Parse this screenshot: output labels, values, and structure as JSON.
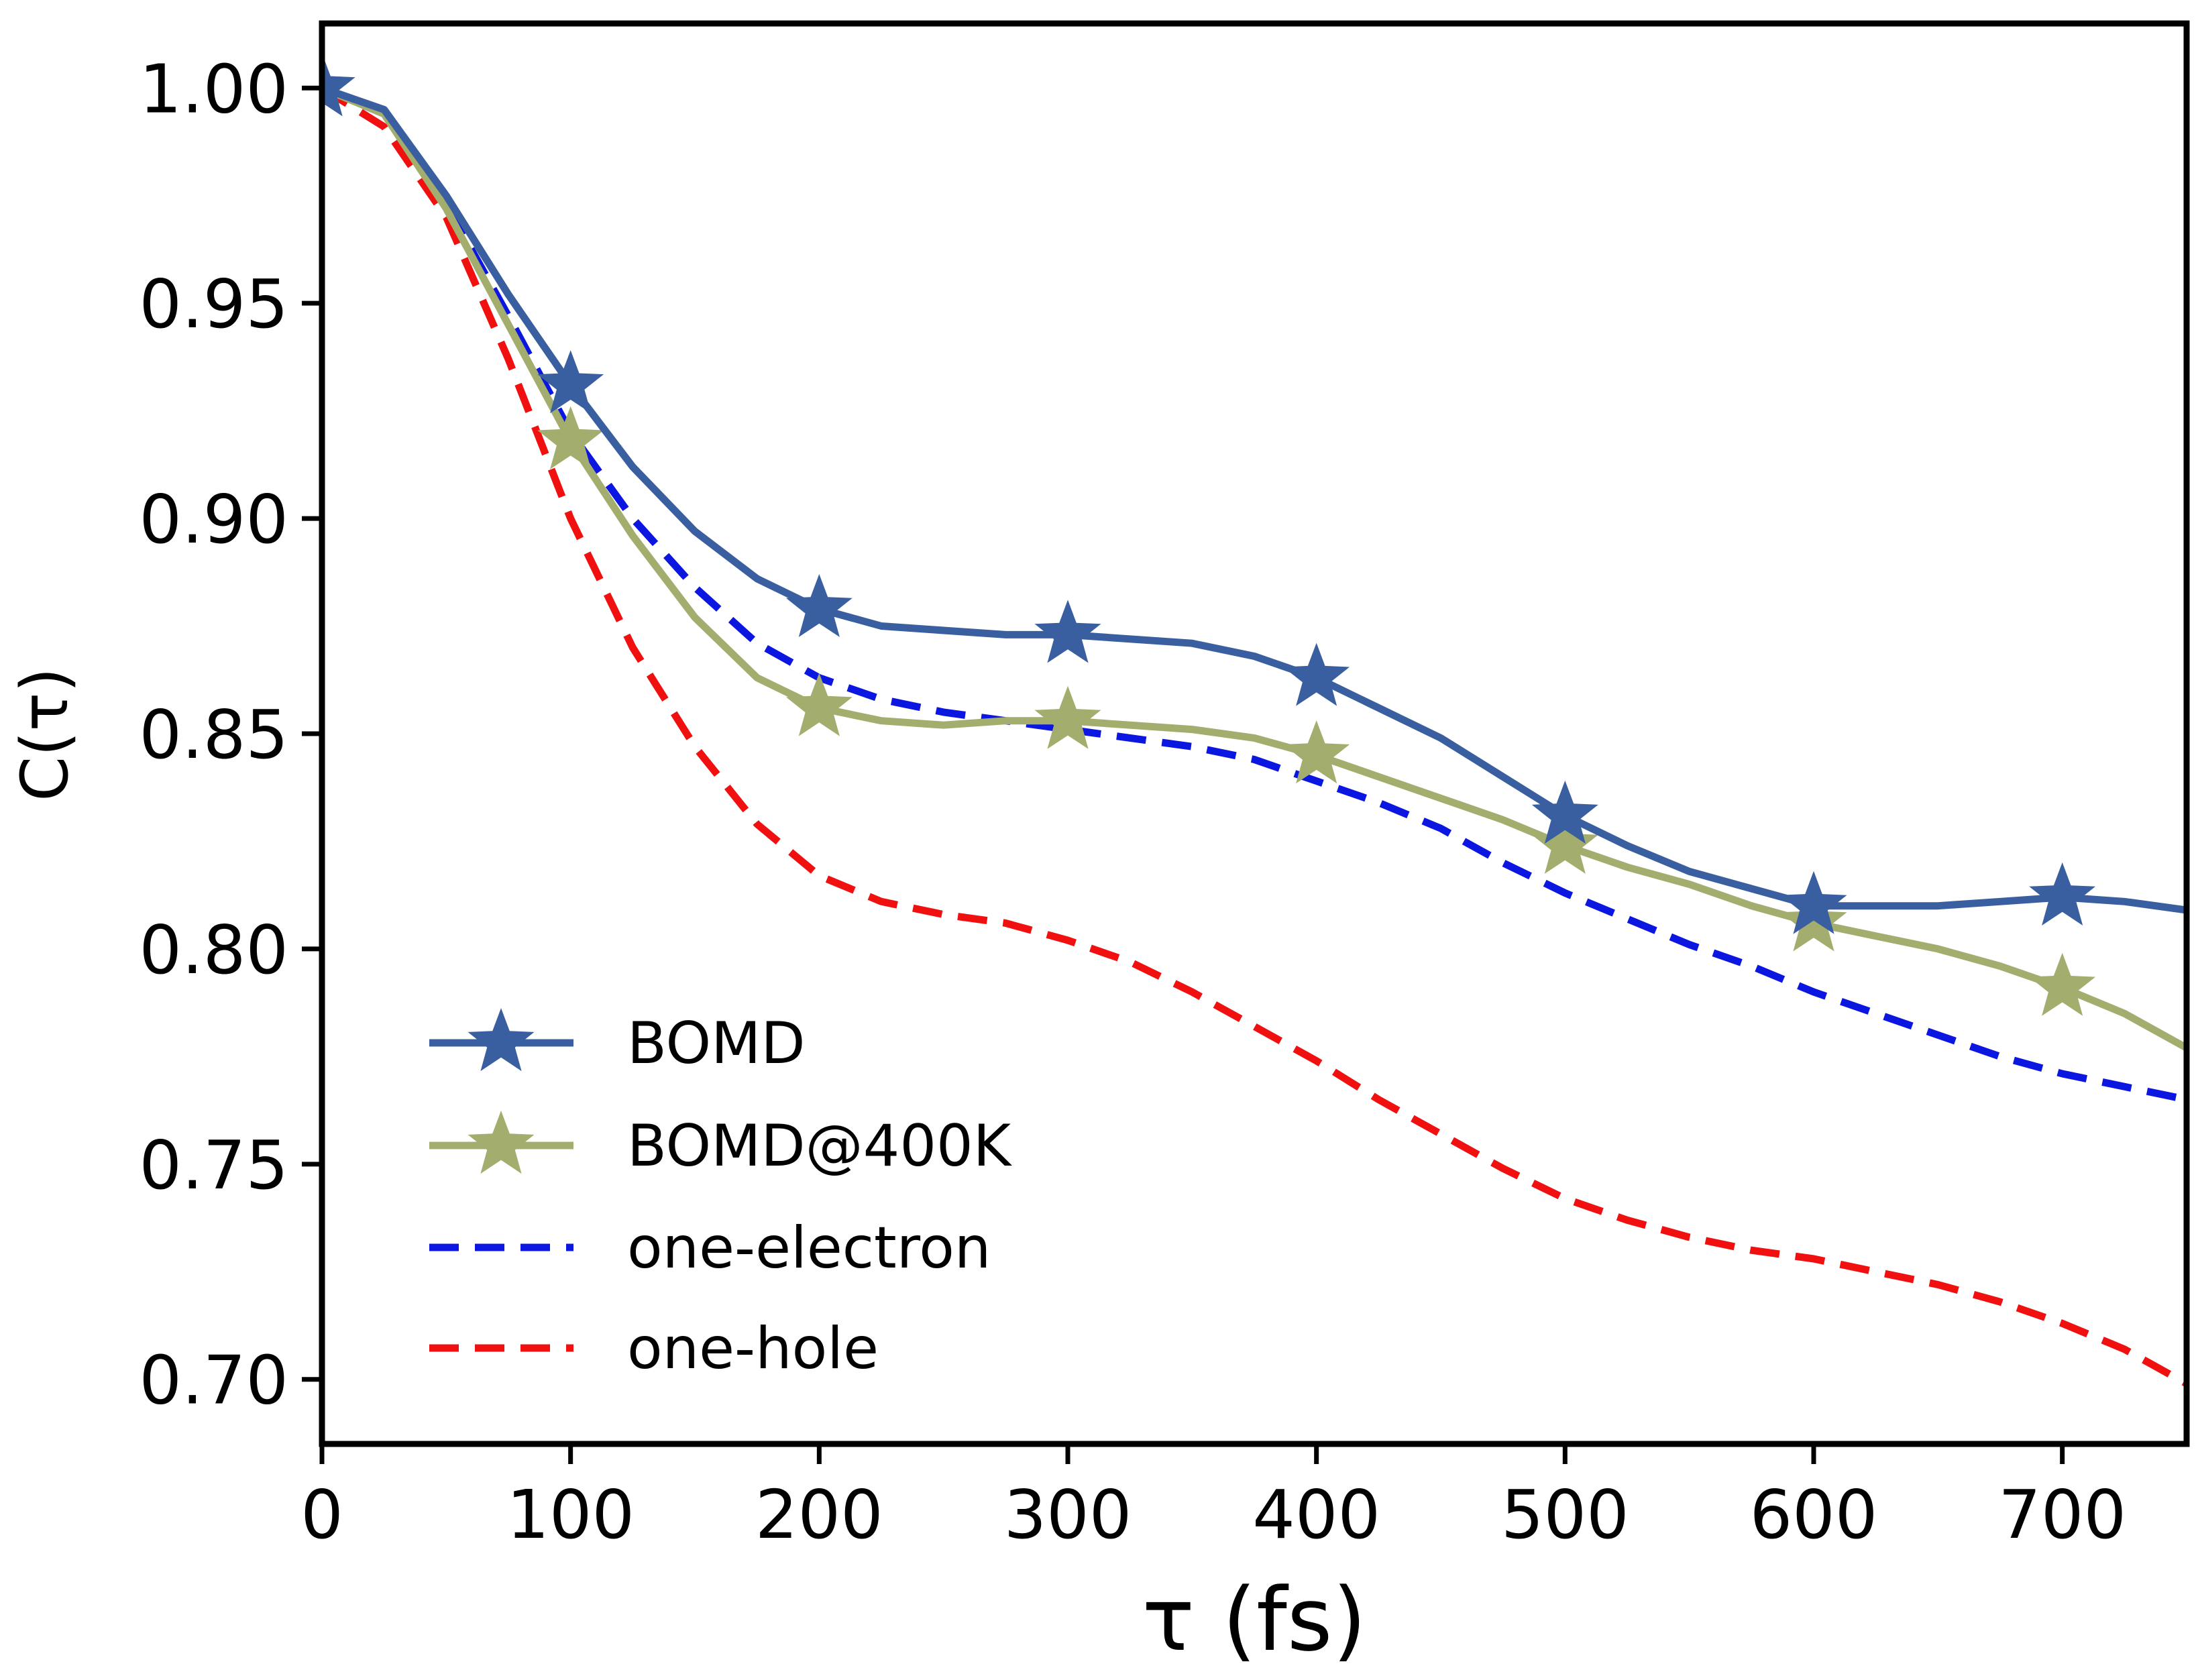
{
  "chart_data": {
    "type": "line",
    "xlabel": "τ (fs)",
    "ylabel": "C(τ)",
    "xlim": [
      0,
      750
    ],
    "ylim": [
      0.685,
      1.015
    ],
    "xticks": [
      0,
      100,
      200,
      300,
      400,
      500,
      600,
      700
    ],
    "xtick_labels": [
      "0",
      "100",
      "200",
      "300",
      "400",
      "500",
      "600",
      "700"
    ],
    "yticks": [
      0.7,
      0.75,
      0.8,
      0.85,
      0.9,
      0.95,
      1.0
    ],
    "ytick_labels": [
      "0.70",
      "0.75",
      "0.80",
      "0.85",
      "0.90",
      "0.95",
      "1.00"
    ],
    "grid": false,
    "legend_position": "lower-left",
    "series": [
      {
        "name": "BOMD",
        "color": "#3a5fa0",
        "style": "solid",
        "marker": "star",
        "marker_x": [
          0,
          100,
          200,
          300,
          400,
          500,
          600,
          700
        ],
        "points": [
          [
            0,
            1.0
          ],
          [
            25,
            0.995
          ],
          [
            50,
            0.975
          ],
          [
            75,
            0.952
          ],
          [
            100,
            0.931
          ],
          [
            125,
            0.912
          ],
          [
            150,
            0.897
          ],
          [
            175,
            0.886
          ],
          [
            200,
            0.879
          ],
          [
            225,
            0.875
          ],
          [
            250,
            0.874
          ],
          [
            275,
            0.873
          ],
          [
            300,
            0.873
          ],
          [
            325,
            0.872
          ],
          [
            350,
            0.871
          ],
          [
            375,
            0.868
          ],
          [
            400,
            0.863
          ],
          [
            425,
            0.856
          ],
          [
            450,
            0.849
          ],
          [
            475,
            0.84
          ],
          [
            500,
            0.831
          ],
          [
            525,
            0.824
          ],
          [
            550,
            0.818
          ],
          [
            575,
            0.814
          ],
          [
            600,
            0.81
          ],
          [
            625,
            0.81
          ],
          [
            650,
            0.81
          ],
          [
            675,
            0.811
          ],
          [
            700,
            0.812
          ],
          [
            725,
            0.811
          ],
          [
            750,
            0.809
          ]
        ]
      },
      {
        "name": "BOMD@400K",
        "color": "#a3ad6e",
        "style": "solid",
        "marker": "star",
        "marker_x": [
          0,
          100,
          200,
          300,
          400,
          500,
          600,
          700
        ],
        "points": [
          [
            0,
            1.0
          ],
          [
            25,
            0.994
          ],
          [
            50,
            0.972
          ],
          [
            75,
            0.945
          ],
          [
            100,
            0.918
          ],
          [
            125,
            0.896
          ],
          [
            150,
            0.877
          ],
          [
            175,
            0.863
          ],
          [
            200,
            0.856
          ],
          [
            225,
            0.853
          ],
          [
            250,
            0.852
          ],
          [
            275,
            0.853
          ],
          [
            300,
            0.853
          ],
          [
            325,
            0.852
          ],
          [
            350,
            0.851
          ],
          [
            375,
            0.849
          ],
          [
            400,
            0.845
          ],
          [
            425,
            0.84
          ],
          [
            450,
            0.835
          ],
          [
            475,
            0.83
          ],
          [
            500,
            0.824
          ],
          [
            525,
            0.819
          ],
          [
            550,
            0.815
          ],
          [
            575,
            0.81
          ],
          [
            600,
            0.806
          ],
          [
            625,
            0.803
          ],
          [
            650,
            0.8
          ],
          [
            675,
            0.796
          ],
          [
            700,
            0.791
          ],
          [
            725,
            0.785
          ],
          [
            750,
            0.777
          ]
        ]
      },
      {
        "name": "one-electron",
        "color": "#0b17e0",
        "style": "dashed",
        "points": [
          [
            0,
            1.0
          ],
          [
            25,
            0.994
          ],
          [
            50,
            0.973
          ],
          [
            75,
            0.947
          ],
          [
            100,
            0.92
          ],
          [
            125,
            0.9
          ],
          [
            150,
            0.884
          ],
          [
            175,
            0.871
          ],
          [
            200,
            0.863
          ],
          [
            225,
            0.858
          ],
          [
            250,
            0.855
          ],
          [
            275,
            0.853
          ],
          [
            300,
            0.851
          ],
          [
            325,
            0.849
          ],
          [
            350,
            0.847
          ],
          [
            375,
            0.844
          ],
          [
            400,
            0.839
          ],
          [
            425,
            0.834
          ],
          [
            450,
            0.828
          ],
          [
            475,
            0.82
          ],
          [
            500,
            0.813
          ],
          [
            525,
            0.807
          ],
          [
            550,
            0.801
          ],
          [
            575,
            0.796
          ],
          [
            600,
            0.79
          ],
          [
            625,
            0.785
          ],
          [
            650,
            0.78
          ],
          [
            675,
            0.775
          ],
          [
            700,
            0.771
          ],
          [
            725,
            0.768
          ],
          [
            750,
            0.765
          ]
        ]
      },
      {
        "name": "one-hole",
        "color": "#f01010",
        "style": "dashed",
        "points": [
          [
            0,
            1.0
          ],
          [
            25,
            0.991
          ],
          [
            50,
            0.97
          ],
          [
            75,
            0.937
          ],
          [
            100,
            0.9
          ],
          [
            125,
            0.87
          ],
          [
            150,
            0.847
          ],
          [
            175,
            0.829
          ],
          [
            200,
            0.817
          ],
          [
            225,
            0.811
          ],
          [
            250,
            0.808
          ],
          [
            275,
            0.806
          ],
          [
            300,
            0.802
          ],
          [
            325,
            0.797
          ],
          [
            350,
            0.79
          ],
          [
            375,
            0.782
          ],
          [
            400,
            0.774
          ],
          [
            425,
            0.765
          ],
          [
            450,
            0.757
          ],
          [
            475,
            0.749
          ],
          [
            500,
            0.742
          ],
          [
            525,
            0.737
          ],
          [
            550,
            0.733
          ],
          [
            575,
            0.73
          ],
          [
            600,
            0.728
          ],
          [
            625,
            0.725
          ],
          [
            650,
            0.722
          ],
          [
            675,
            0.718
          ],
          [
            700,
            0.713
          ],
          [
            725,
            0.707
          ],
          [
            750,
            0.699
          ]
        ]
      }
    ]
  }
}
